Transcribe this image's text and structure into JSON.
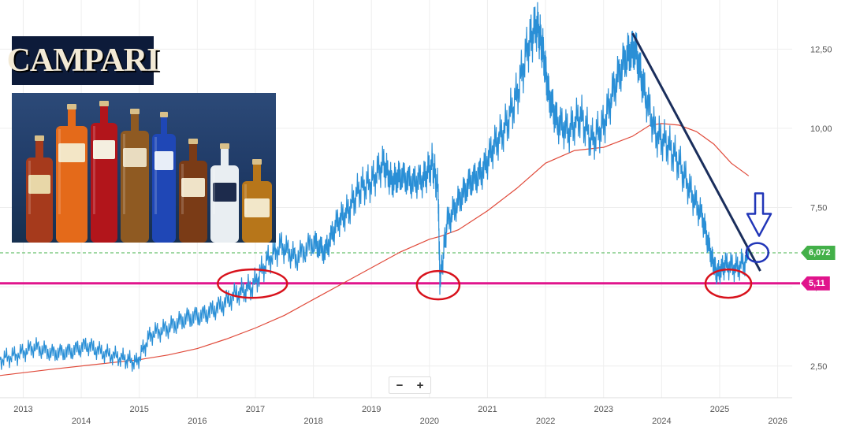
{
  "brand": {
    "logo_text": "CAMPARI"
  },
  "photo": {
    "bottles": [
      {
        "icon": "grand-marnier-bottle",
        "label": "Grand Marnier"
      },
      {
        "icon": "aperol-bottle",
        "label": "APEROL"
      },
      {
        "icon": "campari-bottle",
        "label": "CAMPARI"
      },
      {
        "icon": "wild-turkey-bottle",
        "label": "WILD TURKEY 101"
      },
      {
        "icon": "skyy-bottle",
        "label": "SKYY"
      },
      {
        "icon": "appleton-bottle",
        "label": "APPLETON"
      },
      {
        "icon": "espolon-bottle",
        "label": "ESPOLÒN"
      },
      {
        "icon": "courvoisier-bottle",
        "label": "COURVOISIER"
      }
    ]
  },
  "zoom": {
    "minus": "−",
    "plus": "+"
  },
  "colors": {
    "price": "#2a8fd6",
    "ma": "#e04a3a",
    "support": "#e0148c",
    "current": "#43b049",
    "trend": "#1a2e5c",
    "circle": "#d8121c",
    "arrow": "#2136b8"
  },
  "chart_data": {
    "type": "line",
    "title": "",
    "xlabel": "",
    "ylabel": "",
    "x_ticks": [
      "2013",
      "2014",
      "2015",
      "2016",
      "2017",
      "2018",
      "2019",
      "2020",
      "2021",
      "2022",
      "2023",
      "2024",
      "2025",
      "2026"
    ],
    "y_ticks": [
      "2,50",
      "5,00",
      "7,50",
      "10,00",
      "12,50"
    ],
    "ylim": [
      1.5,
      13.8
    ],
    "xlim": [
      2012.6,
      2026.25
    ],
    "series": [
      {
        "key": "price",
        "x": [
          2012.6,
          2012.9,
          2013.2,
          2013.5,
          2013.8,
          2014.1,
          2014.4,
          2014.7,
          2014.95,
          2015.2,
          2015.5,
          2015.8,
          2016.1,
          2016.4,
          2016.7,
          2016.95,
          2017.2,
          2017.45,
          2017.7,
          2018.0,
          2018.2,
          2018.4,
          2018.6,
          2018.8,
          2019.0,
          2019.2,
          2019.35,
          2019.5,
          2019.7,
          2019.9,
          2020.05,
          2020.15,
          2020.18,
          2020.3,
          2020.5,
          2020.7,
          2020.9,
          2021.1,
          2021.3,
          2021.5,
          2021.7,
          2021.85,
          2021.95,
          2022.05,
          2022.2,
          2022.4,
          2022.6,
          2022.8,
          2023.0,
          2023.2,
          2023.4,
          2023.55,
          2023.7,
          2023.9,
          2024.1,
          2024.3,
          2024.5,
          2024.7,
          2024.85,
          2024.95,
          2025.1,
          2025.3,
          2025.5
        ],
        "y": [
          2.7,
          2.85,
          3.1,
          2.9,
          2.95,
          3.15,
          2.9,
          2.75,
          2.6,
          3.5,
          3.7,
          4.0,
          4.1,
          4.4,
          4.8,
          5.0,
          5.8,
          6.3,
          5.9,
          6.4,
          6.1,
          7.0,
          7.4,
          8.1,
          8.3,
          8.9,
          8.3,
          8.5,
          8.3,
          8.4,
          8.9,
          8.0,
          5.1,
          7.0,
          7.7,
          8.3,
          8.6,
          9.4,
          10.0,
          11.0,
          12.6,
          13.3,
          12.5,
          11.1,
          10.2,
          9.9,
          10.4,
          9.6,
          10.1,
          11.4,
          12.3,
          12.5,
          11.2,
          9.8,
          9.5,
          8.9,
          8.0,
          7.2,
          6.0,
          5.4,
          5.7,
          5.6,
          5.9
        ]
      },
      {
        "key": "ma",
        "x": [
          2012.6,
          2013.5,
          2014.5,
          2015.0,
          2015.5,
          2016.0,
          2016.5,
          2017.0,
          2017.5,
          2018.0,
          2018.5,
          2019.0,
          2019.5,
          2020.0,
          2020.2,
          2020.5,
          2021.0,
          2021.5,
          2022.0,
          2022.5,
          2023.0,
          2023.5,
          2023.8,
          2024.0,
          2024.3,
          2024.6,
          2024.9,
          2025.2,
          2025.5
        ],
        "y": [
          2.2,
          2.4,
          2.6,
          2.7,
          2.85,
          3.05,
          3.35,
          3.7,
          4.1,
          4.6,
          5.1,
          5.6,
          6.1,
          6.5,
          6.6,
          6.8,
          7.4,
          8.1,
          8.9,
          9.3,
          9.4,
          9.75,
          10.1,
          10.15,
          10.1,
          9.9,
          9.5,
          8.9,
          8.5
        ]
      }
    ],
    "horizontal_lines": [
      {
        "key": "current",
        "value": 6.072,
        "label": "6,072",
        "style": "dashed"
      },
      {
        "key": "support",
        "value": 5.11,
        "label": "5,11",
        "style": "solid"
      }
    ],
    "trendline": {
      "x": [
        2023.5,
        2025.7
      ],
      "y": [
        13.0,
        5.5
      ]
    },
    "annotations": {
      "ellipses": [
        {
          "x": 2016.95,
          "y": 5.1
        },
        {
          "x": 2020.15,
          "y": 5.05
        },
        {
          "x": 2025.15,
          "y": 5.1
        }
      ],
      "circle": {
        "x": 2025.65,
        "y": 6.08
      },
      "arrow_down": {
        "x": 2025.68,
        "y": 7.5
      }
    },
    "grid": true,
    "y_axis": "right"
  }
}
